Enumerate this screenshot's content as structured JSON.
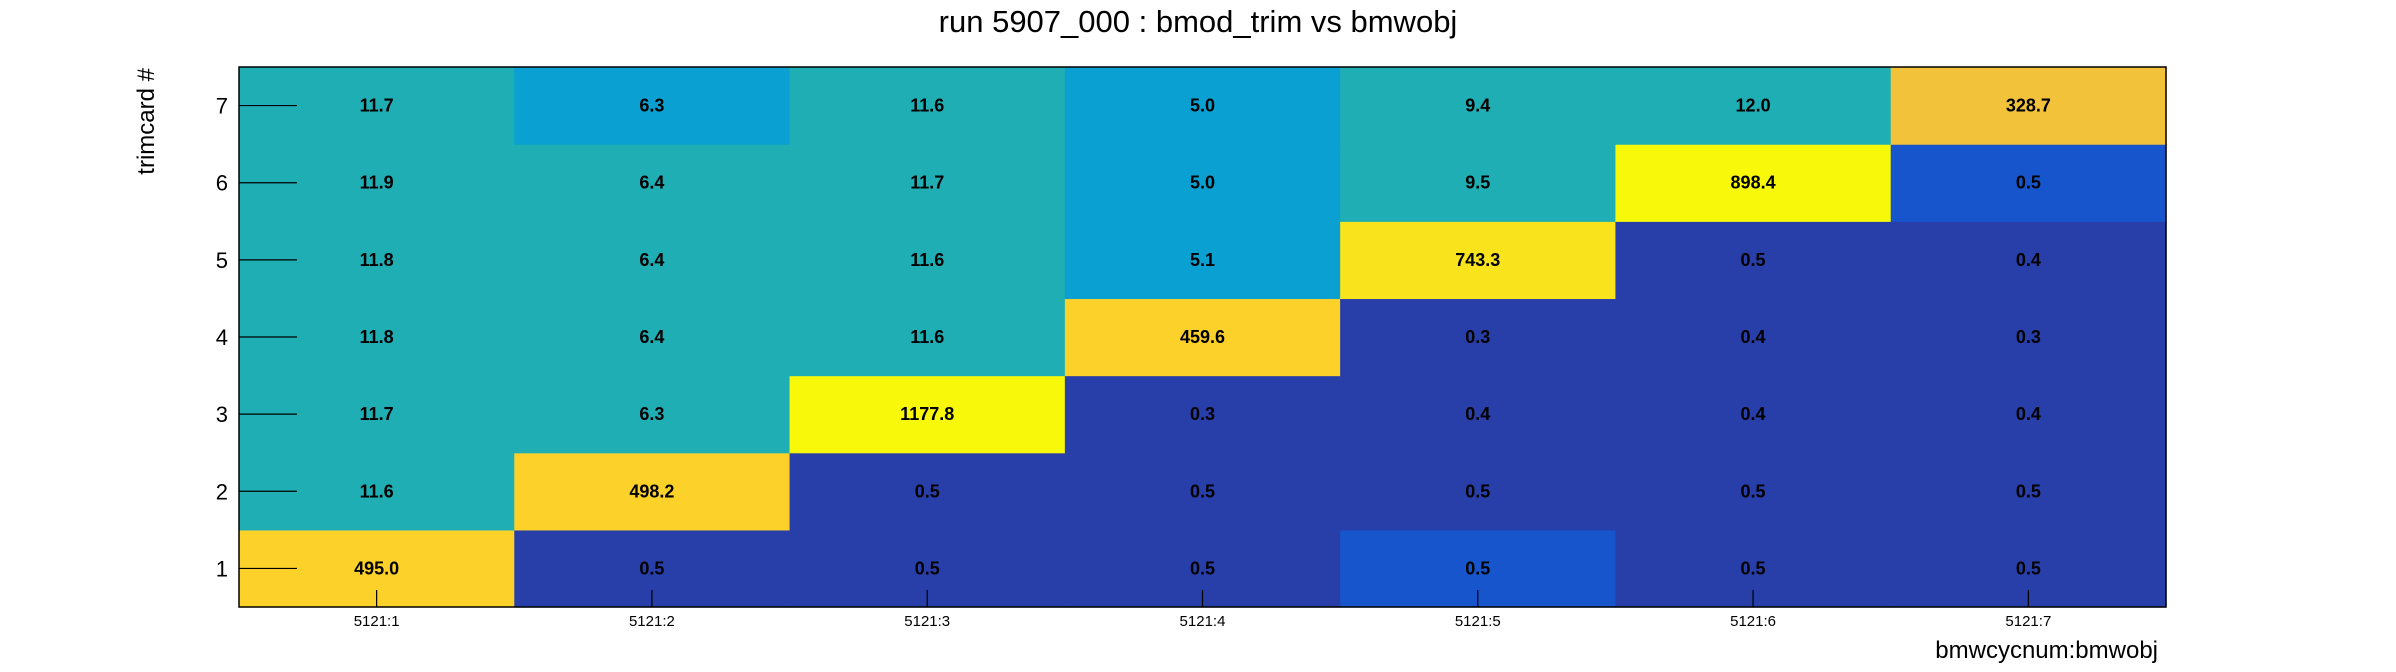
{
  "chart_data": {
    "type": "heatmap",
    "title": "run 5907_000 : bmod_trim vs bmwobj",
    "xlabel": "bmwcycnum:bmwobj",
    "ylabel": "trimcard #",
    "x_categories": [
      "5121:1",
      "5121:2",
      "5121:3",
      "5121:4",
      "5121:5",
      "5121:6",
      "5121:7"
    ],
    "y_categories": [
      "1",
      "2",
      "3",
      "4",
      "5",
      "6",
      "7"
    ],
    "values": [
      [
        495.0,
        0.5,
        0.5,
        0.5,
        0.5,
        0.5,
        0.5
      ],
      [
        11.6,
        498.2,
        0.5,
        0.5,
        0.5,
        0.5,
        0.5
      ],
      [
        11.7,
        6.3,
        1177.8,
        0.3,
        0.4,
        0.4,
        0.4
      ],
      [
        11.8,
        6.4,
        11.6,
        459.6,
        0.3,
        0.4,
        0.3
      ],
      [
        11.8,
        6.4,
        11.6,
        5.1,
        743.3,
        0.5,
        0.4
      ],
      [
        11.9,
        6.4,
        11.7,
        5.0,
        9.5,
        898.4,
        0.5
      ],
      [
        11.7,
        6.3,
        11.6,
        5.0,
        9.4,
        12.0,
        328.7
      ]
    ],
    "value_labels": [
      [
        "495.0",
        "0.5",
        "0.5",
        "0.5",
        "0.5",
        "0.5",
        "0.5"
      ],
      [
        "11.6",
        "498.2",
        "0.5",
        "0.5",
        "0.5",
        "0.5",
        "0.5"
      ],
      [
        "11.7",
        "6.3",
        "1177.8",
        "0.3",
        "0.4",
        "0.4",
        "0.4"
      ],
      [
        "11.8",
        "6.4",
        "11.6",
        "459.6",
        "0.3",
        "0.4",
        "0.3"
      ],
      [
        "11.8",
        "6.4",
        "11.6",
        "5.1",
        "743.3",
        "0.5",
        "0.4"
      ],
      [
        "11.9",
        "6.4",
        "11.7",
        "5.0",
        "9.5",
        "898.4",
        "0.5"
      ],
      [
        "11.7",
        "6.3",
        "11.6",
        "5.0",
        "9.4",
        "12.0",
        "328.7"
      ]
    ],
    "cell_colors": [
      [
        "#fcd12a",
        "#283ea8",
        "#283ea8",
        "#283ea8",
        "#1655cc",
        "#283ea8",
        "#283ea8"
      ],
      [
        "#20aeb5",
        "#fcd12a",
        "#283ea8",
        "#283ea8",
        "#283ea8",
        "#283ea8",
        "#283ea8"
      ],
      [
        "#20aeb5",
        "#20aeb5",
        "#f8f80a",
        "#283ea8",
        "#283ea8",
        "#283ea8",
        "#283ea8"
      ],
      [
        "#20aeb5",
        "#20aeb5",
        "#20aeb5",
        "#fcd12a",
        "#283ea8",
        "#283ea8",
        "#283ea8"
      ],
      [
        "#20aeb5",
        "#20aeb5",
        "#20aeb5",
        "#0aa0d2",
        "#f8e31c",
        "#283ea8",
        "#283ea8"
      ],
      [
        "#20aeb5",
        "#20aeb5",
        "#20aeb5",
        "#0aa0d2",
        "#20aeb5",
        "#f8f80a",
        "#1655cc"
      ],
      [
        "#20aeb5",
        "#0aa0d2",
        "#20aeb5",
        "#0aa0d2",
        "#20aeb5",
        "#20aeb5",
        "#f2c23a"
      ]
    ],
    "grid": false,
    "legend": "none"
  }
}
